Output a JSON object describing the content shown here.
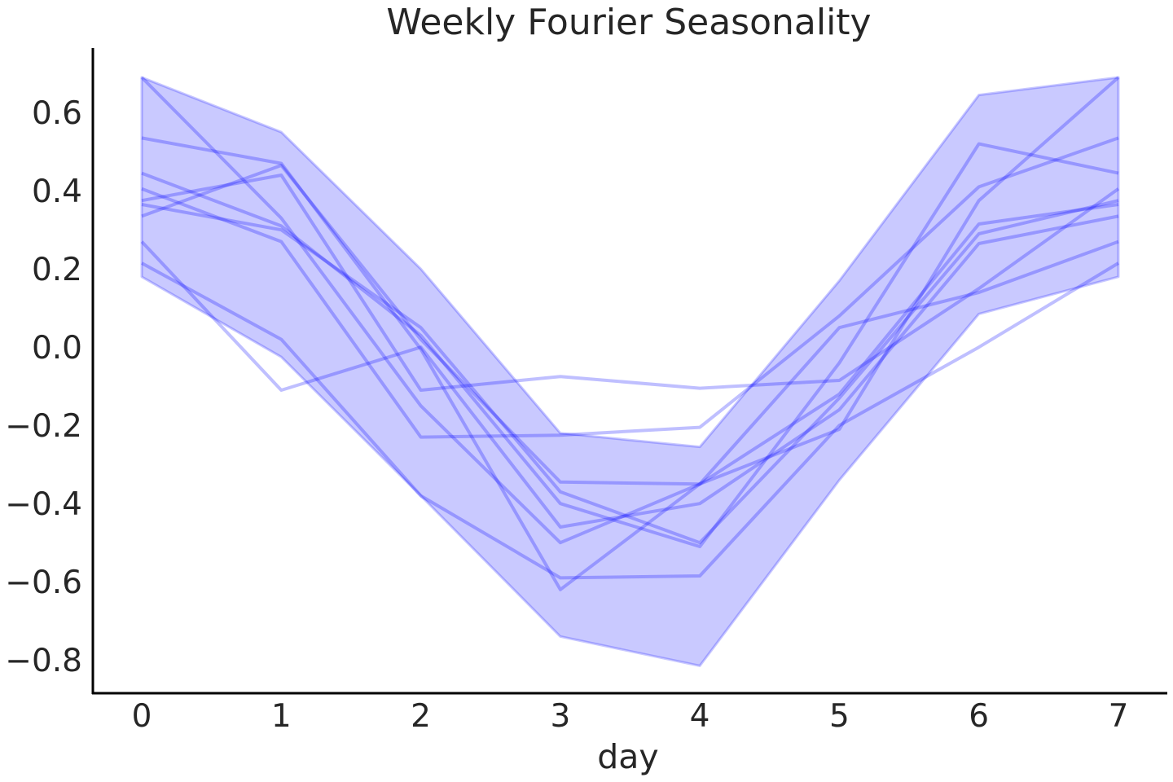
{
  "chart_data": {
    "type": "line",
    "title": "Weekly Fourier Seasonality",
    "xlabel": "day",
    "ylabel": "",
    "x": [
      0,
      1,
      2,
      3,
      4,
      5,
      6,
      7
    ],
    "xlim": [
      -0.35,
      7.35
    ],
    "ylim": [
      -0.885,
      0.765
    ],
    "xticks": [
      0,
      1,
      2,
      3,
      4,
      5,
      6,
      7
    ],
    "yticks": [
      0.6,
      0.4,
      0.2,
      0.0,
      -0.2,
      -0.4,
      -0.6,
      -0.8
    ],
    "xtick_labels": [
      "0",
      "1",
      "2",
      "3",
      "4",
      "5",
      "6",
      "7"
    ],
    "ytick_labels": [
      "0.6",
      "0.4",
      "0.2",
      "0.0",
      "−0.2",
      "−0.4",
      "−0.6",
      "−0.8"
    ],
    "grid": false,
    "line_color": "#0000ff",
    "band_color": "#0000ff",
    "band": {
      "upper": [
        0.69,
        0.55,
        0.2,
        -0.22,
        -0.255,
        0.17,
        0.645,
        0.69
      ],
      "lower": [
        0.18,
        -0.025,
        -0.38,
        -0.74,
        -0.815,
        -0.34,
        0.085,
        0.18
      ]
    },
    "series": [
      {
        "values": [
          0.69,
          0.33,
          -0.15,
          -0.5,
          -0.35,
          0.05,
          0.14,
          0.27
        ]
      },
      {
        "values": [
          0.535,
          0.47,
          -0.005,
          -0.62,
          -0.35,
          -0.21,
          0.375,
          0.69
        ]
      },
      {
        "values": [
          0.445,
          0.31,
          0.03,
          -0.4,
          -0.51,
          -0.04,
          0.52,
          0.445
        ]
      },
      {
        "values": [
          0.405,
          0.27,
          -0.23,
          -0.225,
          -0.205,
          0.08,
          0.41,
          0.535
        ]
      },
      {
        "values": [
          0.375,
          0.44,
          -0.11,
          -0.075,
          -0.105,
          -0.085,
          0.15,
          0.405
        ]
      },
      {
        "values": [
          0.365,
          0.3,
          0.05,
          -0.37,
          -0.5,
          -0.13,
          0.29,
          0.375
        ]
      },
      {
        "values": [
          0.335,
          0.465,
          0.02,
          -0.345,
          -0.35,
          -0.12,
          0.315,
          0.365
        ]
      },
      {
        "values": [
          0.27,
          -0.11,
          0.0,
          -0.46,
          -0.4,
          -0.16,
          0.265,
          0.335
        ]
      },
      {
        "values": [
          0.215,
          0.02,
          -0.38,
          -0.59,
          -0.585,
          -0.2,
          0.0,
          0.215
        ]
      }
    ]
  }
}
